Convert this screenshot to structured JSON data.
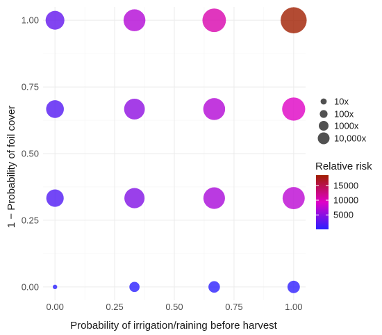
{
  "chart_data": {
    "type": "scatter",
    "xlabel": "Probability of irrigation/raining before harvest",
    "ylabel": "1 − Probability of foil cover",
    "xlim": [
      -0.05,
      1.05
    ],
    "ylim": [
      -0.05,
      1.05
    ],
    "x_ticks": [
      "0.00",
      "0.25",
      "0.50",
      "0.75",
      "1.00"
    ],
    "y_ticks": [
      "0.00",
      "0.25",
      "0.50",
      "0.75",
      "1.00"
    ],
    "grid": true,
    "size_legend": {
      "labels": [
        "10x",
        "100x",
        "1000x",
        "10,000x"
      ],
      "values": [
        10,
        100,
        1000,
        10000
      ]
    },
    "color_legend": {
      "title": "Relative risk",
      "labels": [
        "5000",
        "10000",
        "15000"
      ],
      "values": [
        5000,
        10000,
        15000
      ],
      "range": [
        100,
        18500
      ],
      "colors": [
        "#2a1fff",
        "#e000c8",
        "#a01e00"
      ]
    },
    "legend_position": "right",
    "points": [
      {
        "x": 0.0,
        "y": 0.0,
        "risk": 1
      },
      {
        "x": 0.333,
        "y": 0.0,
        "risk": 100
      },
      {
        "x": 0.667,
        "y": 0.0,
        "risk": 200
      },
      {
        "x": 1.0,
        "y": 0.0,
        "risk": 300
      },
      {
        "x": 0.0,
        "y": 0.333,
        "risk": 2000
      },
      {
        "x": 0.333,
        "y": 0.333,
        "risk": 4500
      },
      {
        "x": 0.667,
        "y": 0.333,
        "risk": 6500
      },
      {
        "x": 1.0,
        "y": 0.333,
        "risk": 7500
      },
      {
        "x": 0.0,
        "y": 0.667,
        "risk": 2200
      },
      {
        "x": 0.333,
        "y": 0.667,
        "risk": 5200
      },
      {
        "x": 0.667,
        "y": 0.667,
        "risk": 7000
      },
      {
        "x": 1.0,
        "y": 0.667,
        "risk": 9500
      },
      {
        "x": 0.0,
        "y": 1.0,
        "risk": 3000
      },
      {
        "x": 0.333,
        "y": 1.0,
        "risk": 7000
      },
      {
        "x": 0.667,
        "y": 1.0,
        "risk": 10500
      },
      {
        "x": 1.0,
        "y": 1.0,
        "risk": 18500
      }
    ]
  }
}
